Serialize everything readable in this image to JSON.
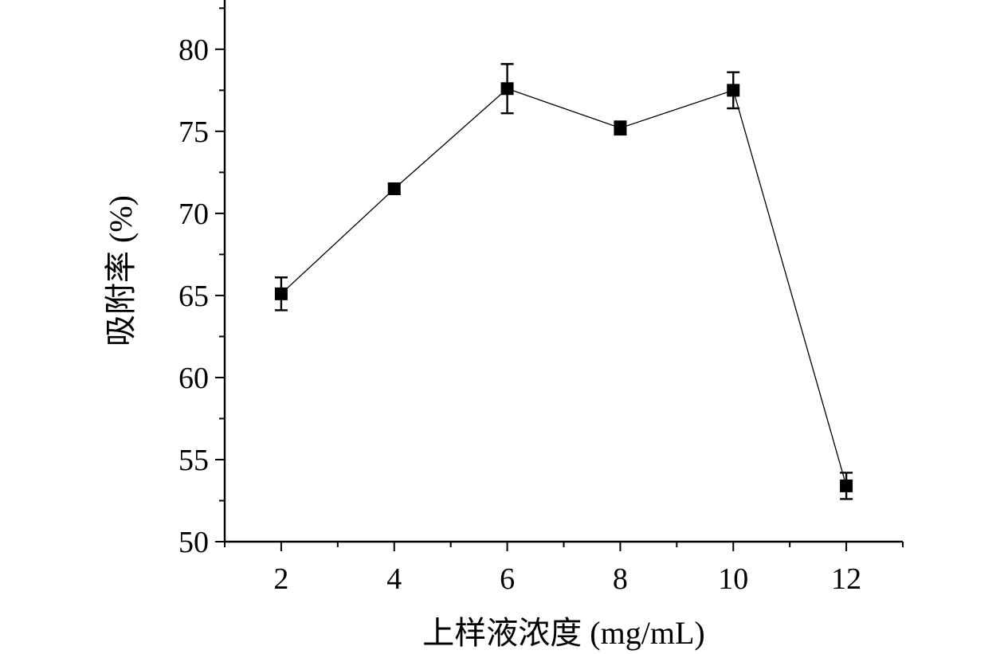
{
  "chart_data": {
    "type": "line",
    "title": "",
    "xlabel": "上样液浓度 (mg/mL)",
    "ylabel": "吸附率 (%)",
    "xlim": [
      1,
      13
    ],
    "ylim": [
      50,
      83
    ],
    "x_ticks": [
      2,
      4,
      6,
      8,
      10,
      12
    ],
    "x_minor_ticks": [
      1,
      3,
      5,
      7,
      9,
      11,
      13
    ],
    "y_ticks": [
      50,
      55,
      60,
      65,
      70,
      75,
      80
    ],
    "y_minor_ticks": [
      52.5,
      57.5,
      62.5,
      67.5,
      72.5,
      77.5,
      82.5
    ],
    "grid": false,
    "legend": "none",
    "series": [
      {
        "x": [
          2,
          4,
          6,
          8,
          10,
          12
        ],
        "y": [
          65.1,
          71.5,
          77.6,
          75.2,
          77.5,
          53.4
        ],
        "error": [
          1.0,
          0.3,
          1.5,
          0.4,
          1.1,
          0.8
        ],
        "marker": "square",
        "color": "#000000"
      }
    ]
  }
}
